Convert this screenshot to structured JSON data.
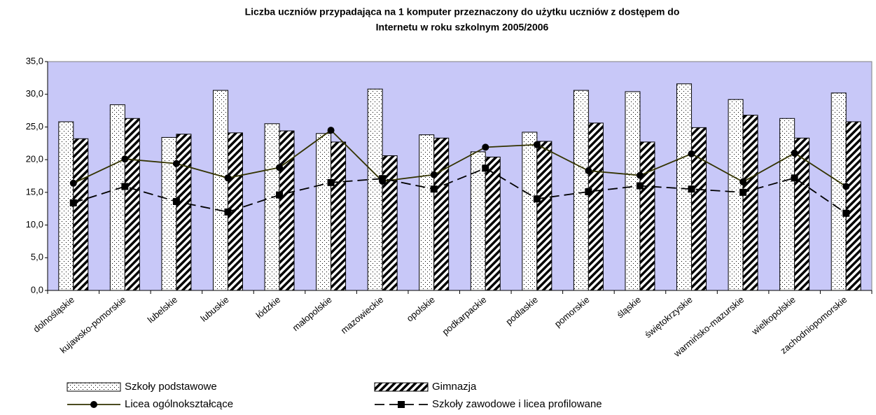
{
  "chart_data": {
    "type": "bar",
    "title": [
      "Liczba uczniów przypadająca na 1 komputer przeznaczony do użytku uczniów z dostępem do",
      "Internetu w roku szkolnym 2005/2006"
    ],
    "categories": [
      "dolnośląskie",
      "kujawsko-pomorskie",
      "lubelskie",
      "lubuskie",
      "łódzkie",
      "małopolskie",
      "mazowieckie",
      "opolskie",
      "podkarpackie",
      "podlaskie",
      "pomorskie",
      "śląskie",
      "świętokrzyskie",
      "warmińsko-mazurskie",
      "wielkopolskie",
      "zachodniopomorskie"
    ],
    "series": [
      {
        "name": "Szkoły podstawowe",
        "type": "bar",
        "pattern": "dots",
        "color": "#ffffff",
        "values": [
          25.8,
          28.4,
          23.4,
          30.6,
          25.5,
          24.0,
          30.8,
          23.8,
          21.2,
          24.2,
          30.6,
          30.4,
          31.6,
          29.2,
          26.3,
          30.2
        ]
      },
      {
        "name": "Gimnazja",
        "type": "bar",
        "pattern": "hatch",
        "color": "#ffffff",
        "values": [
          23.2,
          26.3,
          23.9,
          24.1,
          24.4,
          22.7,
          20.6,
          23.3,
          20.4,
          22.8,
          25.6,
          22.7,
          24.9,
          26.8,
          23.3,
          25.8
        ]
      },
      {
        "name": "Licea ogólnokształcące",
        "type": "line",
        "marker": "circle",
        "dashed": false,
        "color": "#333300",
        "values": [
          16.4,
          20.1,
          19.4,
          17.2,
          18.8,
          24.5,
          16.7,
          17.7,
          21.9,
          22.3,
          18.3,
          17.6,
          20.9,
          16.6,
          21.0,
          15.9
        ]
      },
      {
        "name": "Szkoły zawodowe i licea profilowane",
        "type": "line",
        "marker": "square",
        "dashed": true,
        "color": "#000000",
        "values": [
          13.4,
          15.9,
          13.6,
          12.0,
          14.6,
          16.5,
          17.1,
          15.5,
          18.7,
          14.0,
          15.1,
          16.0,
          15.5,
          15.0,
          17.2,
          11.8
        ]
      }
    ],
    "ylim": [
      0,
      35
    ],
    "yticks": [
      {
        "value": 0,
        "label": "0,0"
      },
      {
        "value": 5,
        "label": "5,0"
      },
      {
        "value": 10,
        "label": "10,0"
      },
      {
        "value": 15,
        "label": "15,0"
      },
      {
        "value": 20,
        "label": "20,0"
      },
      {
        "value": 25,
        "label": "25,0"
      },
      {
        "value": 30,
        "label": "30,0"
      },
      {
        "value": 35,
        "label": "35,0"
      }
    ],
    "grid": false,
    "background": "#c8c8f8"
  }
}
